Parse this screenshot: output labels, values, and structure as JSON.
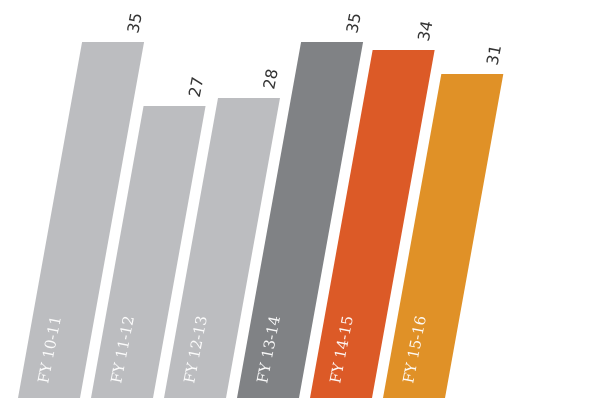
{
  "chart_data": {
    "type": "bar",
    "categories": [
      "FY 10-11",
      "FY 11-12",
      "FY 12-13",
      "FY 13-14",
      "FY 14-15",
      "FY 15-16"
    ],
    "values": [
      35,
      27,
      28,
      35,
      34,
      31
    ],
    "colors": [
      "#bcbdc0",
      "#bcbdc0",
      "#bcbdc0",
      "#808285",
      "#dc5a27",
      "#e09127"
    ],
    "title": "",
    "xlabel": "",
    "ylabel": "",
    "ylim": [
      0,
      35
    ],
    "grid": false,
    "legend": "none"
  }
}
